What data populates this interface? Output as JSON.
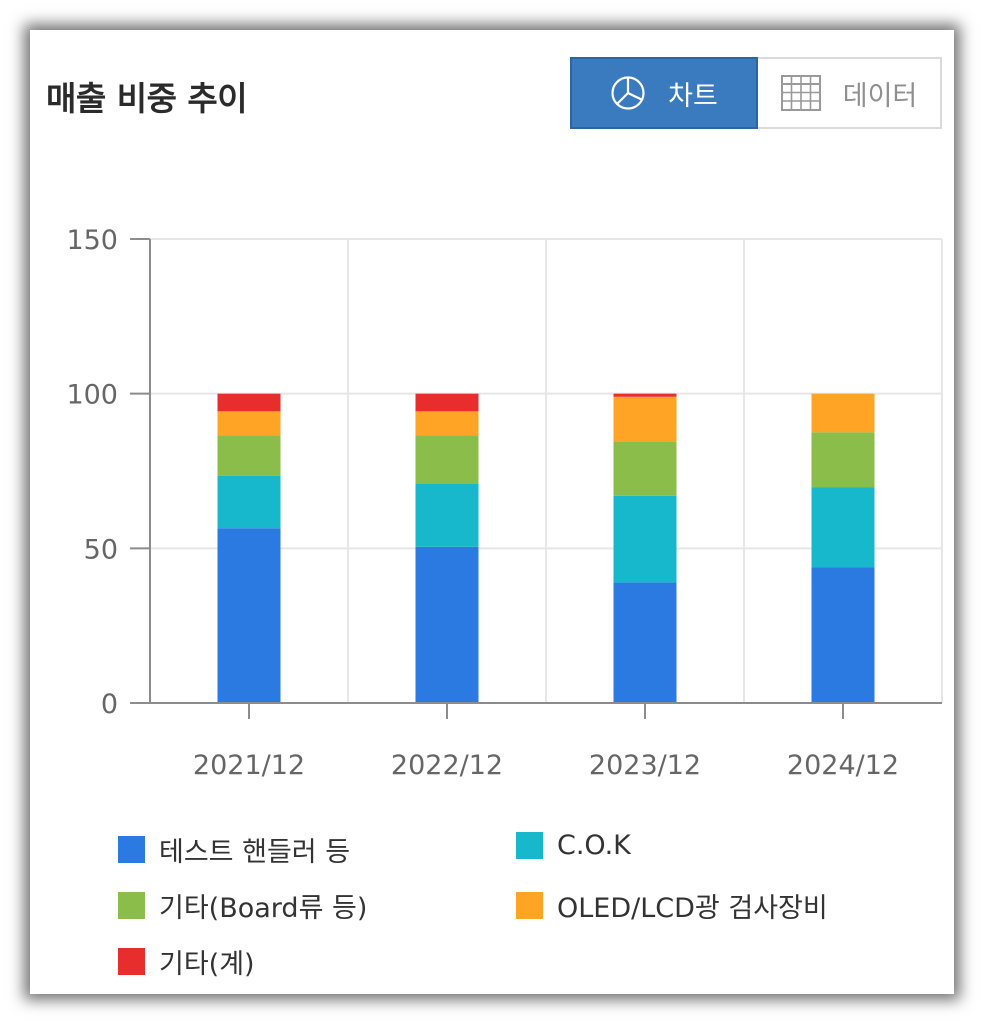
{
  "title": "매출 비중 추이",
  "view_toggle": {
    "chart_label": "차트",
    "data_label": "데이터",
    "active": "chart",
    "chart_icon": "pie-chart-icon",
    "data_icon": "table-grid-icon"
  },
  "colors": {
    "accent": "#3a7bbf",
    "test_handler": "#2a7ae2",
    "cok": "#18b8cc",
    "board": "#8bbd4a",
    "oled": "#ffa424",
    "other": "#e82d2d"
  },
  "chart_data": {
    "type": "bar",
    "stacked": true,
    "title": "",
    "xlabel": "",
    "ylabel": "",
    "ylim": [
      0,
      150
    ],
    "yticks": [
      0,
      50,
      100,
      150
    ],
    "grid": true,
    "legend_position": "bottom",
    "categories": [
      "2021/12",
      "2022/12",
      "2023/12",
      "2024/12"
    ],
    "series": [
      {
        "name": "테스트 핸들러 등",
        "color": "#2a7ae2",
        "values": [
          56.5,
          50.5,
          39.0,
          43.8
        ]
      },
      {
        "name": "C.O.K",
        "color": "#18b8cc",
        "values": [
          17.0,
          20.3,
          28.0,
          26.0
        ]
      },
      {
        "name": "기타(Board류 등)",
        "color": "#8bbd4a",
        "values": [
          13.0,
          15.7,
          17.5,
          17.7
        ]
      },
      {
        "name": "OLED/LCD광 검사장비",
        "color": "#ffa424",
        "values": [
          7.8,
          7.8,
          14.5,
          12.5
        ]
      },
      {
        "name": "기타(계)",
        "color": "#e82d2d",
        "values": [
          5.7,
          5.7,
          1.0,
          0.0
        ]
      }
    ]
  }
}
